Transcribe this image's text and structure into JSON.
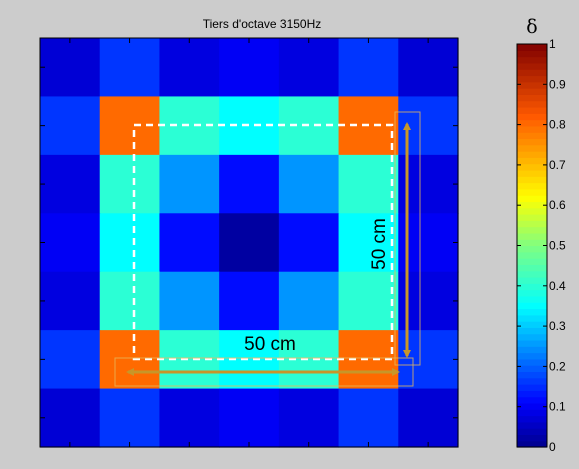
{
  "chart_data": {
    "type": "heatmap",
    "title": "Tiers d'octave 3150Hz",
    "colorbar_label": "δ",
    "clim": [
      0,
      1
    ],
    "colorbar_ticks": [
      "0",
      "0.1",
      "0.2",
      "0.3",
      "0.4",
      "0.5",
      "0.6",
      "0.7",
      "0.8",
      "0.9",
      "1"
    ],
    "colormap": "jet",
    "grid": false,
    "rows": 7,
    "cols": 7,
    "values": [
      [
        0.07,
        0.16,
        0.08,
        0.1,
        0.08,
        0.16,
        0.07
      ],
      [
        0.16,
        0.8,
        0.4,
        0.35,
        0.4,
        0.8,
        0.16
      ],
      [
        0.08,
        0.4,
        0.25,
        0.12,
        0.25,
        0.4,
        0.08
      ],
      [
        0.1,
        0.35,
        0.12,
        0.02,
        0.12,
        0.35,
        0.1
      ],
      [
        0.08,
        0.4,
        0.25,
        0.12,
        0.25,
        0.4,
        0.08
      ],
      [
        0.16,
        0.8,
        0.4,
        0.35,
        0.4,
        0.8,
        0.16
      ],
      [
        0.07,
        0.16,
        0.08,
        0.1,
        0.08,
        0.16,
        0.07
      ]
    ],
    "annotations": [
      {
        "text": "50 cm",
        "orientation": "horizontal"
      },
      {
        "text": "50 cm",
        "orientation": "vertical"
      }
    ],
    "annotation_color": "#c89628",
    "dashed_outline_color": "#ffffff"
  }
}
